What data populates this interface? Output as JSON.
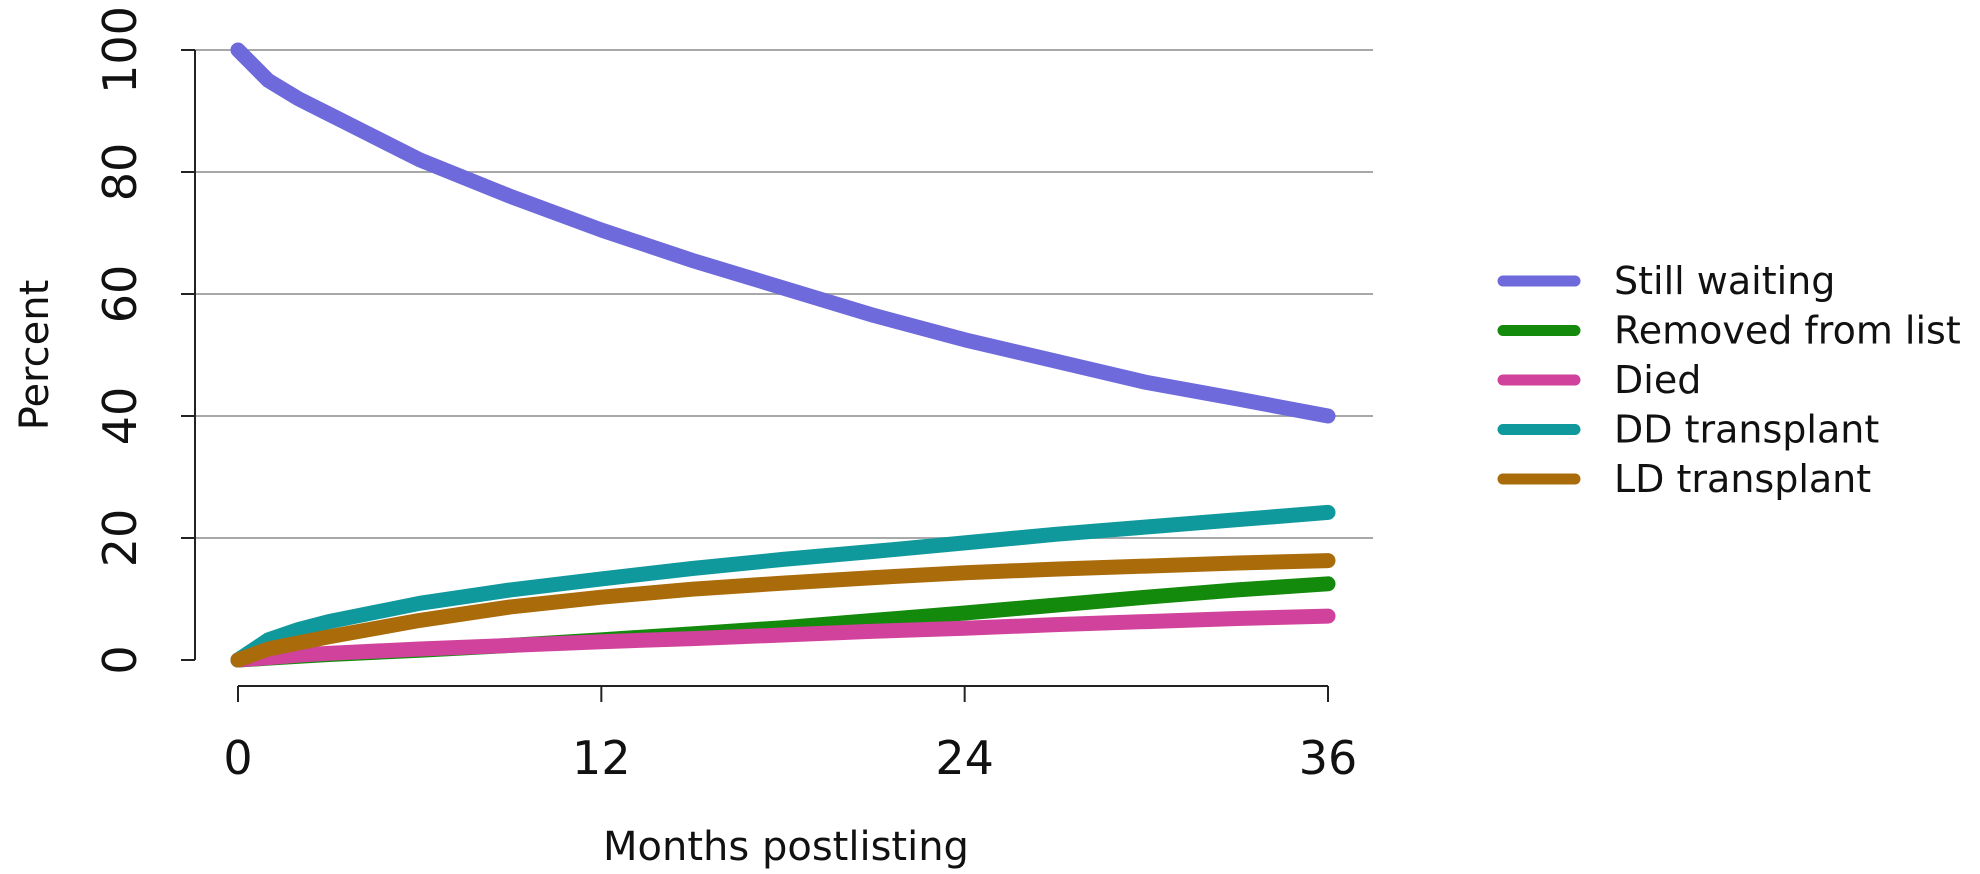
{
  "chart_data": {
    "type": "line",
    "xlabel": "Months postlisting",
    "ylabel": "Percent",
    "x_ticks": [
      0,
      12,
      24,
      36
    ],
    "y_ticks": [
      0,
      20,
      40,
      60,
      80,
      100
    ],
    "xlim": [
      0,
      36
    ],
    "ylim": [
      0,
      100
    ],
    "grid": "horizontal",
    "legend_position": "right",
    "x": [
      0,
      1,
      2,
      3,
      6,
      9,
      12,
      15,
      18,
      21,
      24,
      27,
      30,
      33,
      36
    ],
    "series": [
      {
        "name": "Still waiting",
        "color": "#6E6ADB",
        "values": [
          100,
          95,
          92,
          89.5,
          82,
          76,
          70.5,
          65.5,
          61,
          56.5,
          52.5,
          49,
          45.5,
          42.8,
          40
        ]
      },
      {
        "name": "Removed from list",
        "color": "#138A0B",
        "values": [
          0,
          0.3,
          0.6,
          0.9,
          1.6,
          2.4,
          3.3,
          4.3,
          5.3,
          6.5,
          7.7,
          9,
          10.3,
          11.5,
          12.5
        ]
      },
      {
        "name": "Died",
        "color": "#D0429B",
        "values": [
          0,
          0.4,
          0.8,
          1.1,
          1.8,
          2.4,
          3,
          3.5,
          4.1,
          4.7,
          5.2,
          5.8,
          6.3,
          6.8,
          7.2
        ]
      },
      {
        "name": "DD transplant",
        "color": "#10999C",
        "values": [
          0,
          3.3,
          5,
          6.3,
          9.3,
          11.5,
          13.3,
          15,
          16.5,
          17.8,
          19.2,
          20.6,
          21.8,
          23,
          24.2
        ]
      },
      {
        "name": "LD transplant",
        "color": "#AA6B0A",
        "values": [
          0,
          1.8,
          2.8,
          3.8,
          6.5,
          8.7,
          10.3,
          11.6,
          12.6,
          13.5,
          14.3,
          14.9,
          15.4,
          15.9,
          16.3
        ]
      }
    ]
  }
}
